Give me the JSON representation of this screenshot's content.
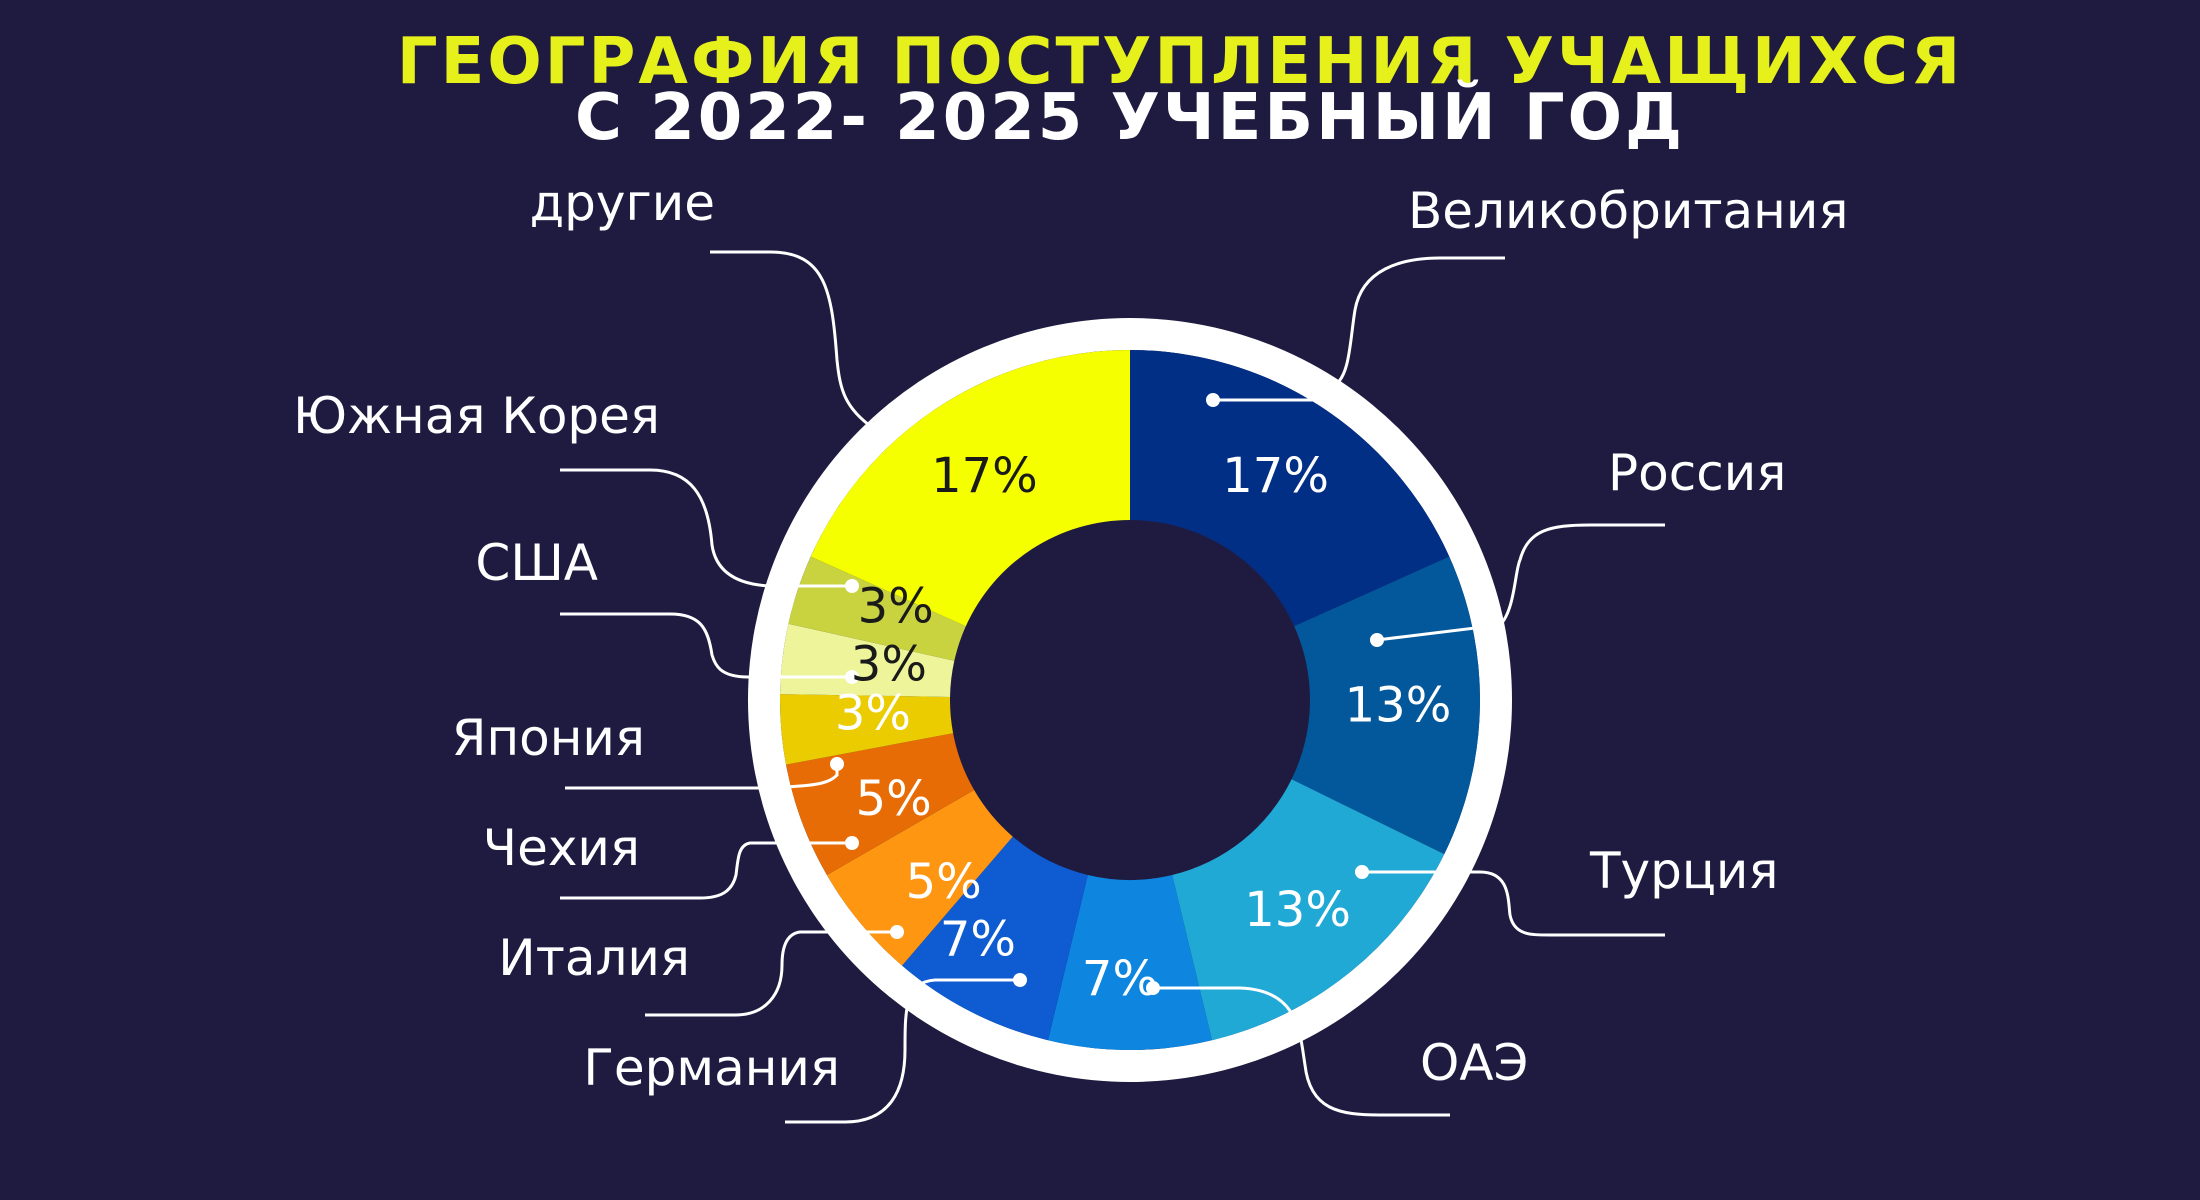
{
  "title": {
    "line1": "ГЕОГРАФИЯ ПОСТУПЛЕНИЯ УЧАЩИХСЯ",
    "line2": "С 2022- 2025 УЧЕБНЫЙ ГОД"
  },
  "colors": {
    "background": "#1f1b40",
    "title_line1": "#e6f01a",
    "title_line2": "#ffffff",
    "ring": "#ffffff",
    "label": "#ffffff"
  },
  "chart_data": {
    "type": "pie",
    "variant": "donut",
    "values_unit": "%",
    "slices": [
      {
        "label": "Великобритания",
        "value": 17,
        "value_label": "17%",
        "color": "#022f86",
        "text_color": "#ffffff"
      },
      {
        "label": "Россия",
        "value": 13,
        "value_label": "13%",
        "color": "#03589b",
        "text_color": "#ffffff"
      },
      {
        "label": "Турция",
        "value": 13,
        "value_label": "13%",
        "color": "#21a9d5",
        "text_color": "#ffffff"
      },
      {
        "label": "ОАЭ",
        "value": 7,
        "value_label": "7%",
        "color": "#0e86e0",
        "text_color": "#ffffff"
      },
      {
        "label": "Германия",
        "value": 7,
        "value_label": "7%",
        "color": "#0e5bd2",
        "text_color": "#ffffff"
      },
      {
        "label": "Италия",
        "value": 5,
        "value_label": "5%",
        "color": "#fe9612",
        "text_color": "#ffffff"
      },
      {
        "label": "Чехия",
        "value": 5,
        "value_label": "5%",
        "color": "#e76c06",
        "text_color": "#ffffff"
      },
      {
        "label": "Япония",
        "value": 3,
        "value_label": "3%",
        "color": "#eacc00",
        "text_color": "#ffffff"
      },
      {
        "label": "США",
        "value": 3,
        "value_label": "3%",
        "color": "#eef49a",
        "text_color": "#1a1a1a"
      },
      {
        "label": "Южная Корея",
        "value": 3,
        "value_label": "3%",
        "color": "#c9d33f",
        "text_color": "#1a1a1a"
      },
      {
        "label": "другие",
        "value": 17,
        "value_label": "17%",
        "color": "#f5ff00",
        "text_color": "#1a1a1a"
      }
    ]
  }
}
